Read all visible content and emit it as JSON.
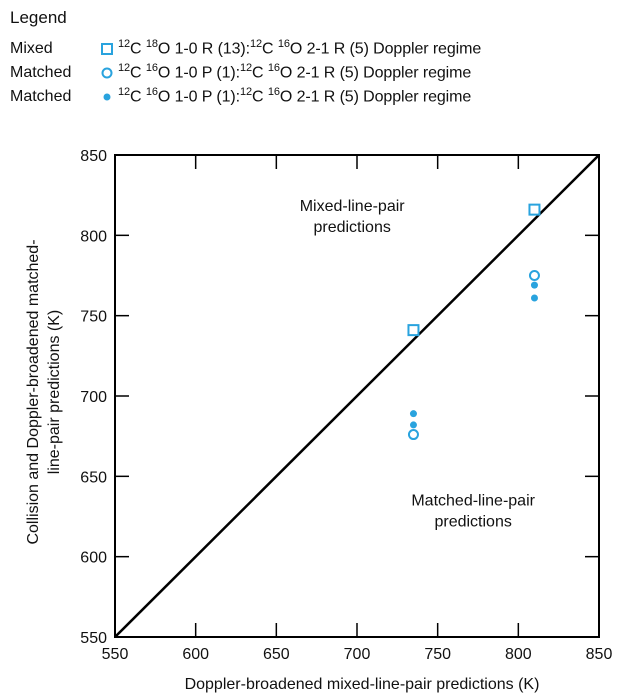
{
  "legend": {
    "title": "Legend",
    "entries": [
      {
        "kind": "Mixed",
        "marker": "open-square",
        "description_html": "<sup>12</sup>C <sup>18</sup>O 1-0 R (13):<sup>12</sup>C <sup>16</sup>O 2-1 R (5) Doppler regime"
      },
      {
        "kind": "Matched",
        "marker": "open-circle",
        "description_html": "<sup>12</sup>C <sup>16</sup>O 1-0 P (1):<sup>12</sup>C <sup>16</sup>O 2-1 R (5) Doppler regime"
      },
      {
        "kind": "Matched",
        "marker": "filled-circle",
        "description_html": "<sup>12</sup>C <sup>16</sup>O 1-0 P (1):<sup>12</sup>C <sup>16</sup>O 2-1 R (5) Doppler regime"
      }
    ]
  },
  "colors": {
    "marker": "#29a3de",
    "line": "#000000"
  },
  "chart_data": {
    "type": "scatter",
    "xlabel": "Doppler-broadened mixed-line-pair predictions (K)",
    "ylabel_lines": [
      "Collision and Doppler-broadened matched-",
      "line-pair predictions (K)"
    ],
    "xlim": [
      550,
      850
    ],
    "ylim": [
      550,
      850
    ],
    "x_ticks": [
      550,
      600,
      650,
      700,
      750,
      800,
      850
    ],
    "y_ticks": [
      550,
      600,
      650,
      700,
      750,
      800,
      850
    ],
    "reference_line": {
      "from": [
        550,
        550
      ],
      "to": [
        850,
        850
      ]
    },
    "series": [
      {
        "marker": "open-square",
        "points": [
          [
            735,
            741
          ],
          [
            810,
            816
          ]
        ]
      },
      {
        "marker": "open-circle",
        "points": [
          [
            735,
            676
          ],
          [
            810,
            775
          ]
        ]
      },
      {
        "marker": "filled-circle",
        "points": [
          [
            735,
            682
          ],
          [
            735,
            689
          ],
          [
            810,
            769
          ],
          [
            810,
            761
          ]
        ]
      }
    ],
    "annotations": [
      {
        "lines": [
          "Mixed-line-pair",
          "predictions"
        ],
        "at": [
          697,
          815
        ]
      },
      {
        "lines": [
          "Matched-line-pair",
          "predictions"
        ],
        "at": [
          772,
          632
        ]
      }
    ]
  }
}
